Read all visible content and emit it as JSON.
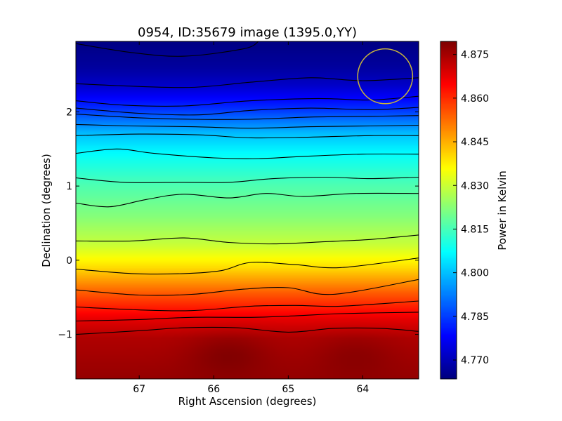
{
  "chart_data": {
    "type": "heatmap",
    "title": "0954, ID:35679 image (1395.0,YY)",
    "xlabel": "Right Ascension (degrees)",
    "ylabel": "Declination (degrees)",
    "xlim": [
      67.85,
      63.25
    ],
    "ylim": [
      -1.6,
      2.95
    ],
    "x_ticks": [
      67,
      66,
      65,
      64
    ],
    "x_tick_labels": [
      "67",
      "66",
      "65",
      "64"
    ],
    "y_ticks": [
      2,
      1,
      0,
      -1
    ],
    "y_tick_labels": [
      "2",
      "1",
      "0",
      "−1"
    ],
    "colormap": "jet",
    "colorbar": {
      "label": "Power in Kelvin",
      "range": [
        4.7635,
        4.8795
      ],
      "ticks": [
        4.77,
        4.785,
        4.8,
        4.815,
        4.83,
        4.845,
        4.86,
        4.875
      ],
      "tick_labels": [
        "4.770",
        "4.785",
        "4.800",
        "4.815",
        "4.830",
        "4.845",
        "4.860",
        "4.875"
      ]
    },
    "field": {
      "dec_profile": [
        [
          2.95,
          4.764
        ],
        [
          2.6,
          4.767
        ],
        [
          2.35,
          4.772
        ],
        [
          2.05,
          4.783
        ],
        [
          1.7,
          4.8
        ],
        [
          1.4,
          4.808
        ],
        [
          1.0,
          4.816
        ],
        [
          0.6,
          4.822
        ],
        [
          0.2,
          4.83
        ],
        [
          -0.1,
          4.84
        ],
        [
          -0.45,
          4.855
        ],
        [
          -0.8,
          4.868
        ],
        [
          -1.05,
          4.874
        ],
        [
          -1.6,
          4.877
        ]
      ],
      "hot_spots": [
        {
          "ra": 65.8,
          "dec": -1.25,
          "value": 4.879
        },
        {
          "ra": 64.1,
          "dec": -1.25,
          "value": 4.878
        }
      ]
    },
    "contours": [
      {
        "dec_at_ra": [
          [
            67.85,
            2.92
          ],
          [
            67.1,
            2.8
          ],
          [
            66.4,
            2.75
          ],
          [
            65.6,
            2.85
          ],
          [
            65.4,
            2.95
          ]
        ]
      },
      {
        "dec_at_ra": [
          [
            67.85,
            2.38
          ],
          [
            67.2,
            2.35
          ],
          [
            66.3,
            2.33
          ],
          [
            65.5,
            2.4
          ],
          [
            64.7,
            2.46
          ],
          [
            64.0,
            2.42
          ],
          [
            63.25,
            2.46
          ]
        ]
      },
      {
        "dec_at_ra": [
          [
            67.85,
            2.15
          ],
          [
            67.2,
            2.09
          ],
          [
            66.4,
            2.08
          ],
          [
            65.5,
            2.15
          ],
          [
            64.6,
            2.18
          ],
          [
            63.9,
            2.16
          ],
          [
            63.25,
            2.21
          ]
        ]
      },
      {
        "dec_at_ra": [
          [
            67.85,
            2.05
          ],
          [
            67.0,
            1.98
          ],
          [
            66.2,
            1.96
          ],
          [
            65.5,
            2.02
          ],
          [
            64.7,
            2.05
          ],
          [
            63.9,
            2.03
          ],
          [
            63.25,
            2.06
          ]
        ]
      },
      {
        "dec_at_ra": [
          [
            67.85,
            1.97
          ],
          [
            67.0,
            1.92
          ],
          [
            66.3,
            1.9
          ],
          [
            65.5,
            1.9
          ],
          [
            64.7,
            1.93
          ],
          [
            63.9,
            1.94
          ],
          [
            63.25,
            1.95
          ]
        ]
      },
      {
        "dec_at_ra": [
          [
            67.85,
            1.83
          ],
          [
            67.1,
            1.81
          ],
          [
            66.3,
            1.8
          ],
          [
            65.5,
            1.78
          ],
          [
            64.7,
            1.8
          ],
          [
            63.9,
            1.81
          ],
          [
            63.25,
            1.82
          ]
        ]
      },
      {
        "dec_at_ra": [
          [
            67.85,
            1.68
          ],
          [
            67.0,
            1.7
          ],
          [
            66.2,
            1.69
          ],
          [
            65.5,
            1.65
          ],
          [
            64.7,
            1.66
          ],
          [
            63.9,
            1.68
          ],
          [
            63.25,
            1.68
          ]
        ]
      },
      {
        "dec_at_ra": [
          [
            67.85,
            1.44
          ],
          [
            67.3,
            1.5
          ],
          [
            66.8,
            1.44
          ],
          [
            66.0,
            1.38
          ],
          [
            65.4,
            1.37
          ],
          [
            64.8,
            1.4
          ],
          [
            64.0,
            1.43
          ],
          [
            63.25,
            1.43
          ]
        ]
      },
      {
        "dec_at_ra": [
          [
            67.85,
            1.11
          ],
          [
            67.2,
            1.05
          ],
          [
            66.4,
            1.05
          ],
          [
            65.8,
            1.05
          ],
          [
            65.2,
            1.1
          ],
          [
            64.5,
            1.12
          ],
          [
            63.9,
            1.1
          ],
          [
            63.25,
            1.12
          ]
        ]
      },
      {
        "dec_at_ra": [
          [
            67.85,
            0.77
          ],
          [
            67.4,
            0.72
          ],
          [
            66.9,
            0.82
          ],
          [
            66.4,
            0.89
          ],
          [
            65.8,
            0.84
          ],
          [
            65.3,
            0.9
          ],
          [
            64.8,
            0.86
          ],
          [
            64.1,
            0.9
          ],
          [
            63.25,
            0.9
          ]
        ]
      },
      {
        "dec_at_ra": [
          [
            67.85,
            0.26
          ],
          [
            67.1,
            0.26
          ],
          [
            66.4,
            0.3
          ],
          [
            65.8,
            0.24
          ],
          [
            65.2,
            0.22
          ],
          [
            64.5,
            0.25
          ],
          [
            63.9,
            0.28
          ],
          [
            63.25,
            0.34
          ]
        ]
      },
      {
        "dec_at_ra": [
          [
            67.85,
            -0.12
          ],
          [
            67.1,
            -0.18
          ],
          [
            66.4,
            -0.18
          ],
          [
            65.9,
            -0.14
          ],
          [
            65.5,
            -0.03
          ],
          [
            64.9,
            -0.06
          ],
          [
            64.3,
            -0.1
          ],
          [
            63.25,
            0.03
          ]
        ]
      },
      {
        "dec_at_ra": [
          [
            67.85,
            -0.4
          ],
          [
            67.0,
            -0.47
          ],
          [
            66.3,
            -0.46
          ],
          [
            65.6,
            -0.39
          ],
          [
            65.0,
            -0.37
          ],
          [
            64.4,
            -0.46
          ],
          [
            63.25,
            -0.26
          ]
        ]
      },
      {
        "dec_at_ra": [
          [
            67.85,
            -0.63
          ],
          [
            67.0,
            -0.67
          ],
          [
            66.3,
            -0.68
          ],
          [
            65.5,
            -0.62
          ],
          [
            64.9,
            -0.61
          ],
          [
            64.3,
            -0.62
          ],
          [
            63.25,
            -0.55
          ]
        ]
      },
      {
        "dec_at_ra": [
          [
            67.85,
            -0.82
          ],
          [
            67.0,
            -0.8
          ],
          [
            66.3,
            -0.77
          ],
          [
            65.5,
            -0.77
          ],
          [
            64.9,
            -0.75
          ],
          [
            64.3,
            -0.72
          ],
          [
            63.25,
            -0.7
          ]
        ]
      },
      {
        "dec_at_ra": [
          [
            67.85,
            -1.0
          ],
          [
            67.0,
            -0.95
          ],
          [
            66.4,
            -0.91
          ],
          [
            65.7,
            -0.91
          ],
          [
            65.0,
            -0.97
          ],
          [
            64.4,
            -0.92
          ],
          [
            63.75,
            -0.92
          ],
          [
            63.25,
            -0.96
          ]
        ]
      }
    ],
    "contour_color": "#000000",
    "beam_marker": {
      "ra": 63.7,
      "dec": 2.48,
      "radius_deg": 0.37,
      "color": "#c8b43c"
    }
  }
}
